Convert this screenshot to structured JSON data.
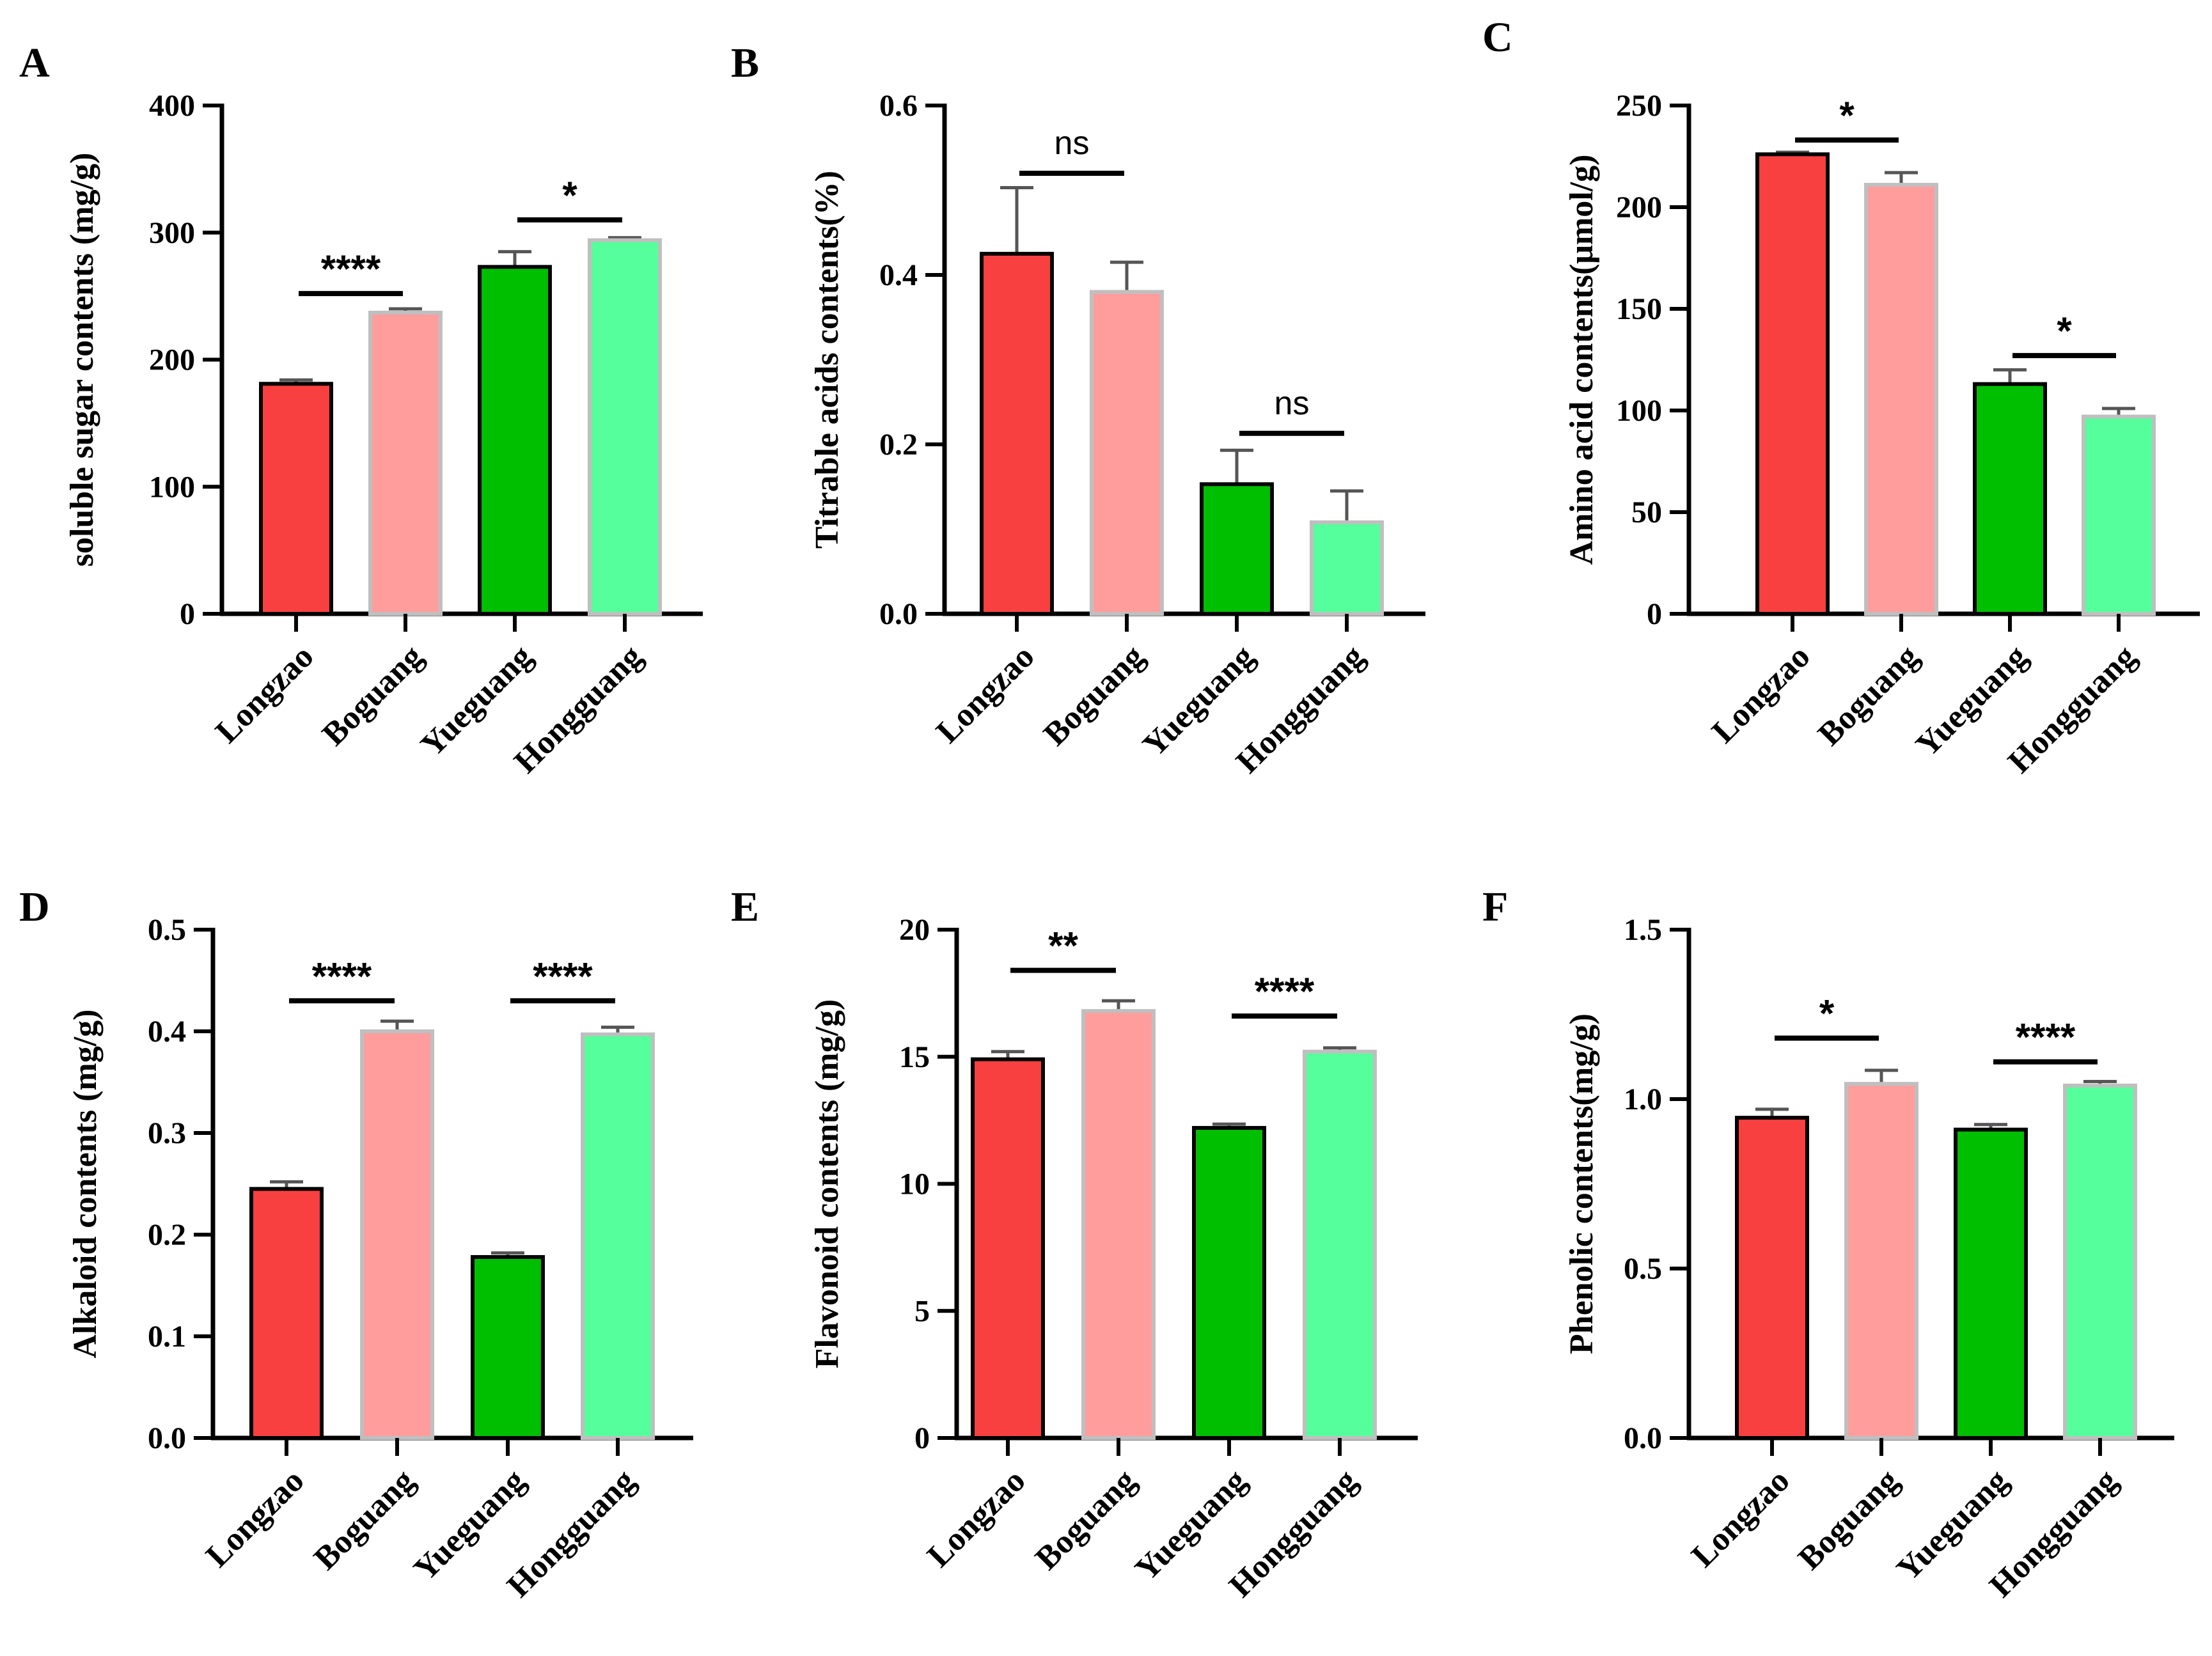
{
  "figure": {
    "categories": [
      "Longzao",
      "Boguang",
      "Yueguang",
      "Hongguang"
    ],
    "colors": {
      "Longzao": "#f94040",
      "Boguang": "#ff9d9d",
      "Yueguang": "#00be00",
      "Hongguang": "#55ff9c",
      "axis": "#000000"
    }
  },
  "chart_data": [
    {
      "type": "bar",
      "panel": "A",
      "ylabel": "soluble sugar contents (mg/g)",
      "ylim": [
        0,
        400
      ],
      "yticks": [
        "0",
        "100",
        "200",
        "300",
        "400"
      ],
      "categories": [
        "Longzao",
        "Boguang",
        "Yueguang",
        "Hongguang"
      ],
      "values": [
        181,
        237,
        273,
        294
      ],
      "errors": [
        3,
        3,
        12,
        2
      ],
      "significance": [
        {
          "from": 0,
          "to": 1,
          "label": "****",
          "y": 252
        },
        {
          "from": 2,
          "to": 3,
          "label": "*",
          "y": 310
        }
      ]
    },
    {
      "type": "bar",
      "panel": "B",
      "ylabel": "Titrable acids contents(%)",
      "ylim": [
        0,
        0.6
      ],
      "yticks": [
        "0.0",
        "0.2",
        "0.4",
        "0.6"
      ],
      "categories": [
        "Longzao",
        "Boguang",
        "Yueguang",
        "Hongguang"
      ],
      "values": [
        0.425,
        0.38,
        0.153,
        0.108
      ],
      "errors": [
        0.078,
        0.035,
        0.04,
        0.037
      ],
      "significance": [
        {
          "from": 0,
          "to": 1,
          "label": "ns",
          "y": 0.52
        },
        {
          "from": 2,
          "to": 3,
          "label": "ns",
          "y": 0.213
        }
      ]
    },
    {
      "type": "bar",
      "panel": "C",
      "ylabel": "Amino acid contents(μmol/g)",
      "ylim": [
        0,
        250
      ],
      "yticks": [
        "0",
        "50",
        "100",
        "150",
        "200",
        "250"
      ],
      "categories": [
        "Longzao",
        "Boguang",
        "Yueguang",
        "Hongguang"
      ],
      "values": [
        226,
        211,
        113,
        97
      ],
      "errors": [
        1,
        6,
        7,
        4
      ],
      "significance": [
        {
          "from": 0,
          "to": 1,
          "label": "*",
          "y": 233
        },
        {
          "from": 2,
          "to": 3,
          "label": "*",
          "y": 127
        }
      ]
    },
    {
      "type": "bar",
      "panel": "D",
      "ylabel": "Alkaloid contents (mg/g)",
      "ylim": [
        0,
        0.5
      ],
      "yticks": [
        "0.0",
        "0.1",
        "0.2",
        "0.3",
        "0.4",
        "0.5"
      ],
      "categories": [
        "Longzao",
        "Boguang",
        "Yueguang",
        "Hongguang"
      ],
      "values": [
        0.245,
        0.4,
        0.178,
        0.397
      ],
      "errors": [
        0.007,
        0.01,
        0.004,
        0.007
      ],
      "significance": [
        {
          "from": 0,
          "to": 1,
          "label": "****",
          "y": 0.43
        },
        {
          "from": 2,
          "to": 3,
          "label": "****",
          "y": 0.43
        }
      ]
    },
    {
      "type": "bar",
      "panel": "E",
      "ylabel": "Flavonoid contents (mg/g)",
      "ylim": [
        0,
        20
      ],
      "yticks": [
        "0",
        "5",
        "10",
        "15",
        "20"
      ],
      "categories": [
        "Longzao",
        "Boguang",
        "Yueguang",
        "Hongguang"
      ],
      "values": [
        14.9,
        16.8,
        12.2,
        15.2
      ],
      "errors": [
        0.3,
        0.4,
        0.15,
        0.15
      ],
      "significance": [
        {
          "from": 0,
          "to": 1,
          "label": "**",
          "y": 18.4
        },
        {
          "from": 2,
          "to": 3,
          "label": "****",
          "y": 16.6
        }
      ]
    },
    {
      "type": "bar",
      "panel": "F",
      "ylabel": "Phenolic contents(mg/g)",
      "ylim": [
        0,
        1.5
      ],
      "yticks": [
        "0.0",
        "0.5",
        "1.0",
        "1.5"
      ],
      "categories": [
        "Longzao",
        "Boguang",
        "Yueguang",
        "Hongguang"
      ],
      "values": [
        0.945,
        1.045,
        0.91,
        1.04
      ],
      "errors": [
        0.025,
        0.04,
        0.015,
        0.012
      ],
      "significance": [
        {
          "from": 0,
          "to": 1,
          "label": "*",
          "y": 1.18
        },
        {
          "from": 2,
          "to": 3,
          "label": "****",
          "y": 1.11
        }
      ]
    }
  ]
}
